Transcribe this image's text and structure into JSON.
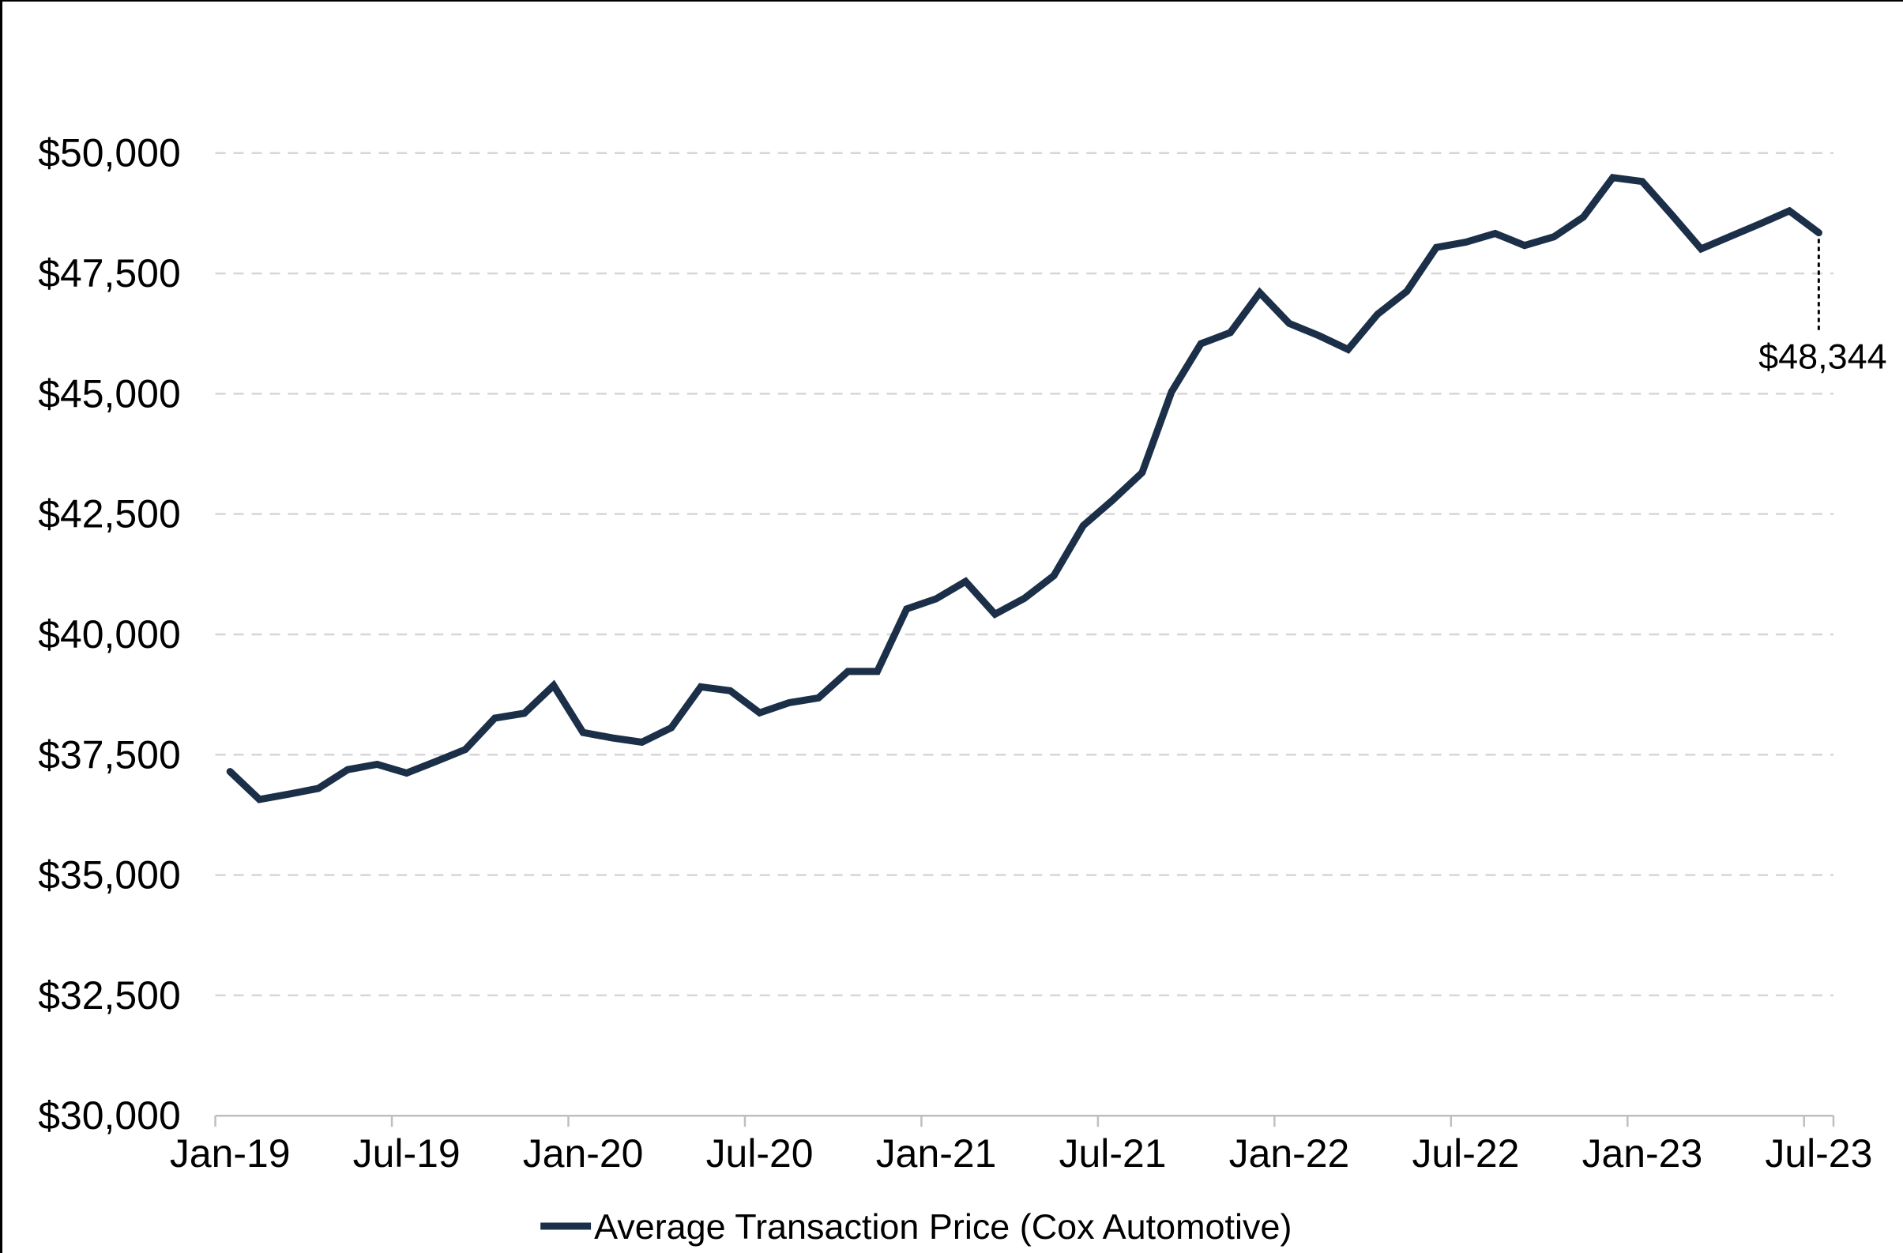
{
  "colors": {
    "line": "#1b2f48",
    "grid": "#d6d6d6",
    "axis": "#bfbfbf",
    "text": "#000000",
    "background": "#ffffff",
    "leader": "#000000"
  },
  "chart_data": {
    "type": "line",
    "x": [
      "Jan-19",
      "Feb-19",
      "Mar-19",
      "Apr-19",
      "May-19",
      "Jun-19",
      "Jul-19",
      "Aug-19",
      "Sep-19",
      "Oct-19",
      "Nov-19",
      "Dec-19",
      "Jan-20",
      "Feb-20",
      "Mar-20",
      "Apr-20",
      "May-20",
      "Jun-20",
      "Jul-20",
      "Aug-20",
      "Sep-20",
      "Oct-20",
      "Nov-20",
      "Dec-20",
      "Jan-21",
      "Feb-21",
      "Mar-21",
      "Apr-21",
      "May-21",
      "Jun-21",
      "Jul-21",
      "Aug-21",
      "Sep-21",
      "Oct-21",
      "Nov-21",
      "Dec-21",
      "Jan-22",
      "Feb-22",
      "Mar-22",
      "Apr-22",
      "May-22",
      "Jun-22",
      "Jul-22",
      "Aug-22",
      "Sep-22",
      "Oct-22",
      "Nov-22",
      "Dec-22",
      "Jan-23",
      "Feb-23",
      "Mar-23",
      "Apr-23",
      "May-23",
      "Jun-23",
      "Jul-23"
    ],
    "series": [
      {
        "name": "Average Transaction Price (Cox Automotive)",
        "values": [
          37150,
          36570,
          36680,
          36800,
          37190,
          37300,
          37120,
          37360,
          37610,
          38260,
          38360,
          38940,
          37960,
          37850,
          37760,
          38060,
          38910,
          38830,
          38370,
          38580,
          38680,
          39230,
          39230,
          40530,
          40740,
          41100,
          40420,
          40750,
          41220,
          42260,
          42790,
          43360,
          45040,
          46040,
          46270,
          47100,
          46460,
          46210,
          45920,
          46650,
          47130,
          48040,
          48150,
          48330,
          48080,
          48260,
          48670,
          49490,
          49410,
          48720,
          48010,
          48270,
          48530,
          48800,
          48344
        ]
      }
    ],
    "title": "",
    "xlabel": "",
    "ylabel": "",
    "ylim": [
      30000,
      50000
    ],
    "ytick_step": 2500,
    "ytick_labels": [
      "$30,000",
      "$32,500",
      "$35,000",
      "$37,500",
      "$40,000",
      "$42,500",
      "$45,000",
      "$47,500",
      "$50,000"
    ],
    "xtick_labels": [
      "Jan-19",
      "Jul-19",
      "Jan-20",
      "Jul-20",
      "Jan-21",
      "Jul-21",
      "Jan-22",
      "Jul-22",
      "Jan-23",
      "Jul-23"
    ],
    "xtick_month_interval": 6,
    "grid": "horizontal-dashed",
    "legend_position": "bottom-center",
    "annotation": {
      "label": "$48,344",
      "point_index": 54
    }
  },
  "legend": {
    "label": "Average Transaction Price (Cox Automotive)"
  }
}
